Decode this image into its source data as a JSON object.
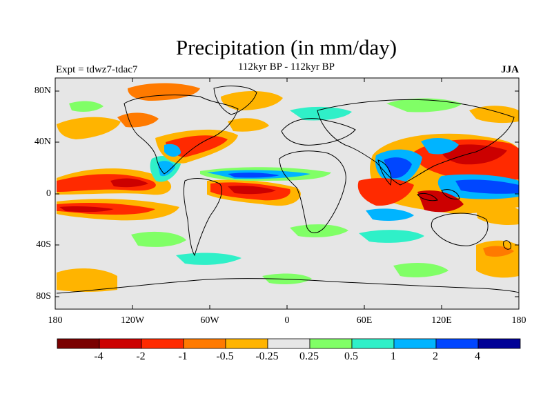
{
  "title": "Precipitation (in mm/day)",
  "subtitle": "112kyr BP - 112kyr BP",
  "left_label": "Expt = tdwz7-tdac7",
  "right_label": "JJA",
  "map": {
    "lat_ticks": [
      "80N",
      "40N",
      "0",
      "40S",
      "80S"
    ],
    "lon_ticks": [
      "180",
      "120W",
      "60W",
      "0",
      "60E",
      "120E",
      "180"
    ]
  },
  "colorbar": {
    "colors": [
      "#7a0000",
      "#cc0000",
      "#ff2a00",
      "#ff7a00",
      "#ffb400",
      "#e6e6e6",
      "#80ff66",
      "#2ff0c8",
      "#00b4ff",
      "#0046ff",
      "#000096"
    ],
    "labels": [
      "-4",
      "-2",
      "-1",
      "-0.5",
      "-0.25",
      "0.25",
      "0.5",
      "1",
      "2",
      "4"
    ]
  }
}
